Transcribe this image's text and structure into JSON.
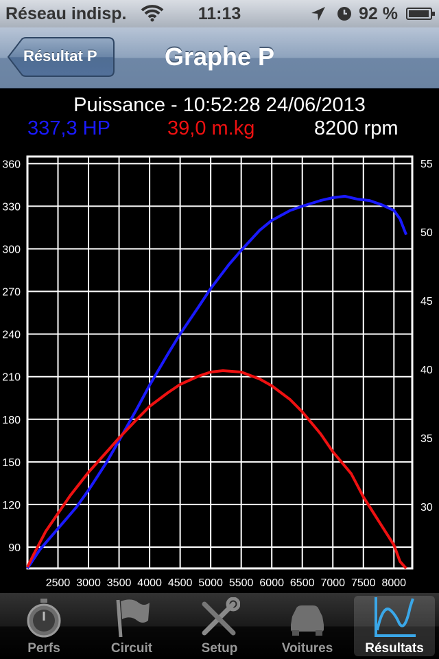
{
  "status_bar": {
    "carrier": "Réseau indisp.",
    "time": "11:13",
    "battery": "92 %",
    "icons": [
      "wifi-icon",
      "location-arrow-icon",
      "rotation-lock-icon",
      "battery-icon"
    ]
  },
  "nav": {
    "back_label": "Résultat P",
    "title": "Graphe P"
  },
  "header": {
    "title": "Puissance - 10:52:28 24/06/2013",
    "power": "337,3 HP",
    "torque": "39,0 m.kg",
    "rpm": "8200 rpm"
  },
  "colors": {
    "power": "#1a1aff",
    "torque": "#ee1111",
    "grid": "#ffffff",
    "background": "#000000"
  },
  "chart_data": {
    "type": "line",
    "title": "",
    "xlabel": "",
    "ylabel": "",
    "x_ticks": [
      "2500",
      "3000",
      "3500",
      "4000",
      "4500",
      "5000",
      "5500",
      "6000",
      "6500",
      "7000",
      "7500",
      "8000"
    ],
    "xlim": [
      2000,
      8300
    ],
    "y_left_ticks": [
      "360",
      "330",
      "300",
      "270",
      "240",
      "210",
      "180",
      "150",
      "120",
      "90"
    ],
    "ylim_left": [
      75,
      365
    ],
    "y_right_ticks": [
      "55",
      "50",
      "45",
      "40",
      "35",
      "30"
    ],
    "ylim_right": [
      25.5,
      55.5
    ],
    "grid": true,
    "series": [
      {
        "axis": "left",
        "color": "#1a1aff",
        "x": [
          2000,
          2200,
          2500,
          2800,
          3000,
          3300,
          3500,
          3800,
          4000,
          4300,
          4500,
          4800,
          5000,
          5300,
          5500,
          5800,
          6000,
          6300,
          6500,
          6800,
          7000,
          7200,
          7400,
          7600,
          7800,
          8000,
          8100,
          8200
        ],
        "y": [
          75,
          88,
          103,
          118,
          130,
          150,
          165,
          188,
          204,
          226,
          240,
          259,
          272,
          289,
          299,
          313,
          320,
          327,
          330,
          334,
          336,
          337,
          335,
          334,
          331,
          327,
          321,
          310
        ]
      },
      {
        "axis": "right",
        "color": "#ee1111",
        "x": [
          2000,
          2100,
          2300,
          2500,
          2700,
          3000,
          3300,
          3500,
          3800,
          4000,
          4300,
          4500,
          4800,
          5000,
          5200,
          5500,
          5800,
          6000,
          6300,
          6500,
          6800,
          7000,
          7300,
          7500,
          7700,
          8000,
          8100,
          8200
        ],
        "y": [
          25.6,
          26.5,
          28.2,
          29.5,
          30.8,
          32.5,
          34,
          35,
          36.4,
          37.3,
          38.3,
          38.9,
          39.5,
          39.8,
          39.9,
          39.8,
          39.3,
          38.8,
          37.8,
          36.9,
          35.3,
          34.0,
          32.4,
          30.7,
          29.3,
          27.2,
          26.0,
          24.9
        ]
      }
    ]
  },
  "tabs": [
    {
      "label": "Perfs",
      "icon": "stopwatch-icon",
      "active": false
    },
    {
      "label": "Circuit",
      "icon": "checkered-flag-icon",
      "active": false
    },
    {
      "label": "Setup",
      "icon": "wrench-screwdriver-icon",
      "active": false
    },
    {
      "label": "Voitures",
      "icon": "car-icon",
      "active": false
    },
    {
      "label": "Résultats",
      "icon": "graph-icon",
      "active": true
    }
  ]
}
